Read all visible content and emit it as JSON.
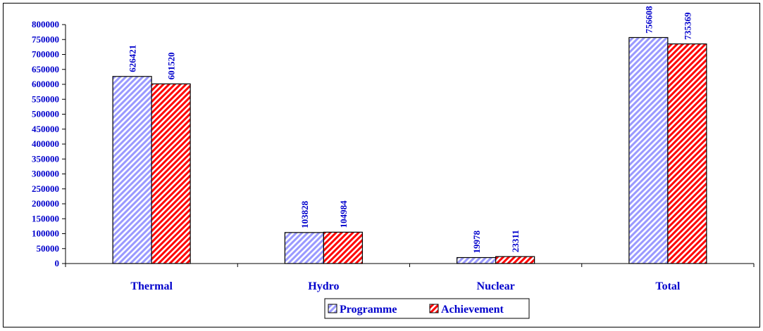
{
  "chart_data": {
    "type": "bar",
    "title": "",
    "xlabel": "",
    "ylabel": "",
    "categories": [
      "Thermal",
      "Hydro",
      "Nuclear",
      "Total"
    ],
    "series": [
      {
        "name": "Programme",
        "values": [
          626421,
          103828,
          19978,
          756608
        ],
        "color": "#9999ff",
        "pattern": "diagonal-hatch"
      },
      {
        "name": "Achievement",
        "values": [
          601520,
          104984,
          23311,
          735369
        ],
        "color": "#ff0000",
        "pattern": "diagonal-hatch"
      }
    ],
    "ylim": [
      0,
      800000
    ],
    "y_ticks": [
      "0",
      "50000",
      "100000",
      "150000",
      "200000",
      "250000",
      "300000",
      "350000",
      "400000",
      "450000",
      "500000",
      "550000",
      "600000",
      "650000",
      "700000",
      "750000",
      "800000"
    ],
    "grid": false,
    "data_labels": true,
    "legend_position": "bottom",
    "colors": {
      "text": "#0000cc",
      "axis": "#000000",
      "bar_outline": "#000000",
      "frame": "#000000"
    }
  }
}
